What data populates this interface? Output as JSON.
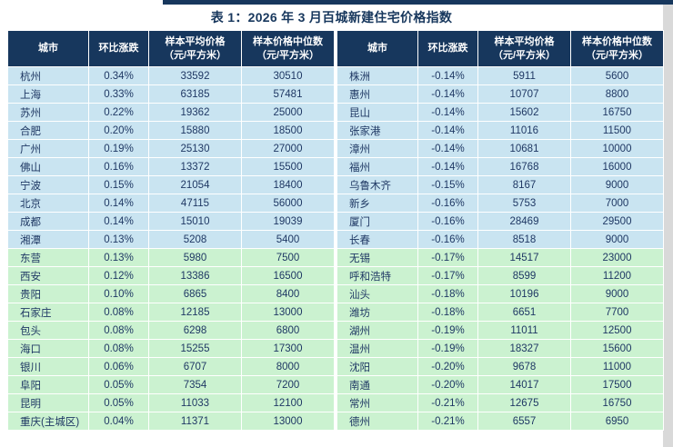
{
  "title": "表 1：2026 年 3 月百城新建住宅价格指数",
  "columns": [
    {
      "key": "city",
      "line1": "城市",
      "line2": ""
    },
    {
      "key": "mom-change",
      "line1": "环比涨跌",
      "line2": ""
    },
    {
      "key": "avg-price",
      "line1": "样本平均价格",
      "line2": "（元/平方米）"
    },
    {
      "key": "median-price",
      "line1": "样本价格中位数",
      "line2": "（元/平方米）"
    }
  ],
  "blue_rows_per_table": 10,
  "left_table": {
    "rows": [
      [
        "杭州",
        "0.34%",
        "33592",
        "30510"
      ],
      [
        "上海",
        "0.33%",
        "63185",
        "57481"
      ],
      [
        "苏州",
        "0.22%",
        "19362",
        "25000"
      ],
      [
        "合肥",
        "0.20%",
        "15880",
        "18500"
      ],
      [
        "广州",
        "0.19%",
        "25130",
        "27000"
      ],
      [
        "佛山",
        "0.16%",
        "13372",
        "15500"
      ],
      [
        "宁波",
        "0.15%",
        "21054",
        "18400"
      ],
      [
        "北京",
        "0.14%",
        "47115",
        "56000"
      ],
      [
        "成都",
        "0.14%",
        "15010",
        "19039"
      ],
      [
        "湘潭",
        "0.13%",
        "5208",
        "5400"
      ],
      [
        "东营",
        "0.13%",
        "5980",
        "7500"
      ],
      [
        "西安",
        "0.12%",
        "13386",
        "16500"
      ],
      [
        "贵阳",
        "0.10%",
        "6865",
        "8400"
      ],
      [
        "石家庄",
        "0.08%",
        "12185",
        "13000"
      ],
      [
        "包头",
        "0.08%",
        "6298",
        "6800"
      ],
      [
        "海口",
        "0.08%",
        "15255",
        "17300"
      ],
      [
        "银川",
        "0.06%",
        "6707",
        "8000"
      ],
      [
        "阜阳",
        "0.05%",
        "7354",
        "7200"
      ],
      [
        "昆明",
        "0.05%",
        "11033",
        "12100"
      ],
      [
        "重庆(主城区)",
        "0.04%",
        "11371",
        "13000"
      ]
    ]
  },
  "right_table": {
    "rows": [
      [
        "株洲",
        "-0.14%",
        "5911",
        "5600"
      ],
      [
        "惠州",
        "-0.14%",
        "10707",
        "8800"
      ],
      [
        "昆山",
        "-0.14%",
        "15602",
        "16750"
      ],
      [
        "张家港",
        "-0.14%",
        "11016",
        "11500"
      ],
      [
        "漳州",
        "-0.14%",
        "10681",
        "10000"
      ],
      [
        "福州",
        "-0.14%",
        "16768",
        "16000"
      ],
      [
        "乌鲁木齐",
        "-0.15%",
        "8167",
        "9000"
      ],
      [
        "新乡",
        "-0.16%",
        "5753",
        "7000"
      ],
      [
        "厦门",
        "-0.16%",
        "28469",
        "29500"
      ],
      [
        "长春",
        "-0.16%",
        "8518",
        "9000"
      ],
      [
        "无锡",
        "-0.17%",
        "14517",
        "23000"
      ],
      [
        "呼和浩特",
        "-0.17%",
        "8599",
        "11200"
      ],
      [
        "汕头",
        "-0.18%",
        "10196",
        "9000"
      ],
      [
        "潍坊",
        "-0.18%",
        "6651",
        "7700"
      ],
      [
        "湖州",
        "-0.19%",
        "11011",
        "12500"
      ],
      [
        "温州",
        "-0.19%",
        "18327",
        "15600"
      ],
      [
        "沈阳",
        "-0.20%",
        "9678",
        "11000"
      ],
      [
        "南通",
        "-0.20%",
        "14017",
        "17500"
      ],
      [
        "常州",
        "-0.21%",
        "12675",
        "16750"
      ],
      [
        "德州",
        "-0.21%",
        "6557",
        "6950"
      ]
    ]
  },
  "colors": {
    "header_bg": "#17375D",
    "title_text": "#17375D",
    "cell_text": "#1F3864",
    "row_blue": "#C9E4F1",
    "row_green": "#CBF2D0",
    "grid_line": "#FFFFFF",
    "top_bar": "#17375D",
    "right_strip": "#D9D9D9"
  }
}
